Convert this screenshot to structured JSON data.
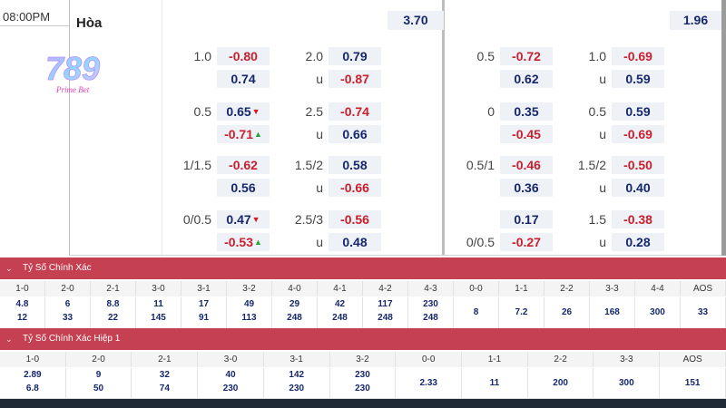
{
  "time": "08:00PM",
  "draw_label": "Hòa",
  "draw_odds_left": "3.70",
  "draw_odds_right": "1.96",
  "logo": {
    "text": "789",
    "subtext": "Prime Bet"
  },
  "handicap_rows": [
    {
      "l1": "1.0",
      "l1a": "-0.80",
      "l1b": "0.74",
      "l2": "2.0",
      "l2a": "0.79",
      "l2b_lbl": "u",
      "l2b": "-0.87",
      "r1": "0.5",
      "r1a": "-0.72",
      "r1b": "0.62",
      "r2": "1.0",
      "r2a": "-0.69",
      "r2b_lbl": "u",
      "r2b": "0.59"
    },
    {
      "l1": "0.5",
      "l1a": "0.65",
      "l1b": "-0.71",
      "l2": "2.5",
      "l2a": "-0.74",
      "l2b_lbl": "u",
      "l2b": "0.66",
      "r1": "0",
      "r1a": "0.35",
      "r1b": "-0.45",
      "r2": "0.5",
      "r2a": "0.59",
      "r2b_lbl": "u",
      "r2b": "-0.69"
    },
    {
      "l1": "1/1.5",
      "l1a": "-0.62",
      "l1b": "0.56",
      "l2": "1.5/2",
      "l2a": "0.58",
      "l2b_lbl": "u",
      "l2b": "-0.66",
      "r1": "0.5/1",
      "r1a": "-0.46",
      "r1b": "0.36",
      "r2": "1.5/2",
      "r2a": "-0.50",
      "r2b_lbl": "u",
      "r2b": "0.40"
    },
    {
      "l1": "0/0.5",
      "l1a": "0.47",
      "l1b": "-0.53",
      "l2": "2.5/3",
      "l2a": "-0.56",
      "l2b_lbl": "u",
      "l2b": "0.48",
      "r1": "",
      "r1b_lbl": "0/0.5",
      "r1a": "0.17",
      "r1b": "-0.27",
      "r2": "1.5",
      "r2a": "-0.38",
      "r2b_lbl": "u",
      "r2b": "0.28"
    }
  ],
  "correct_score": {
    "title": "Tỷ Số Chính Xác",
    "headers": [
      "1-0",
      "2-0",
      "2-1",
      "3-0",
      "3-1",
      "3-2",
      "4-0",
      "4-1",
      "4-2",
      "4-3",
      "0-0",
      "1-1",
      "2-2",
      "3-3",
      "4-4",
      "AOS"
    ],
    "top": [
      "4.8",
      "6",
      "8.8",
      "11",
      "17",
      "49",
      "29",
      "42",
      "117",
      "230",
      "8",
      "7.2",
      "26",
      "168",
      "300",
      "33"
    ],
    "bottom": [
      "12",
      "33",
      "22",
      "145",
      "91",
      "113",
      "248",
      "248",
      "248",
      "248",
      "",
      "",
      "",
      "",
      "",
      ""
    ]
  },
  "correct_score_h1": {
    "title": "Tỷ Số Chính Xác Hiệp 1",
    "headers": [
      "1-0",
      "2-0",
      "2-1",
      "3-0",
      "3-1",
      "3-2",
      "0-0",
      "1-1",
      "2-2",
      "3-3",
      "AOS"
    ],
    "top": [
      "2.89",
      "9",
      "32",
      "40",
      "142",
      "230",
      "2.33",
      "11",
      "200",
      "300",
      "151"
    ],
    "bottom": [
      "6.8",
      "50",
      "74",
      "230",
      "230",
      "230",
      "",
      "",
      "",
      "",
      ""
    ]
  }
}
